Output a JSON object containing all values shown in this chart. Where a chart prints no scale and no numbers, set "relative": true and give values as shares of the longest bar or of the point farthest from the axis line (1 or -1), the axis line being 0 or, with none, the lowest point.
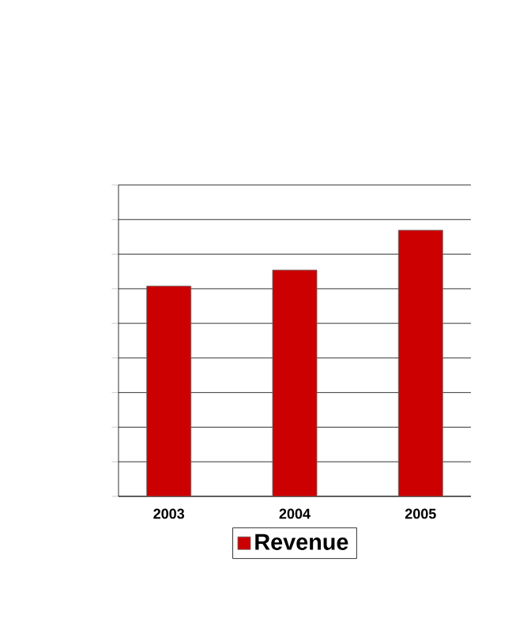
{
  "chart_data": {
    "type": "bar",
    "relative": true,
    "categories": [
      "2003",
      "2004",
      "2005"
    ],
    "series": [
      {
        "name": "Revenue",
        "color": "#cc0000",
        "values": [
          0.79,
          0.85,
          1
        ]
      }
    ],
    "grid": "y",
    "legend": "bottom"
  }
}
